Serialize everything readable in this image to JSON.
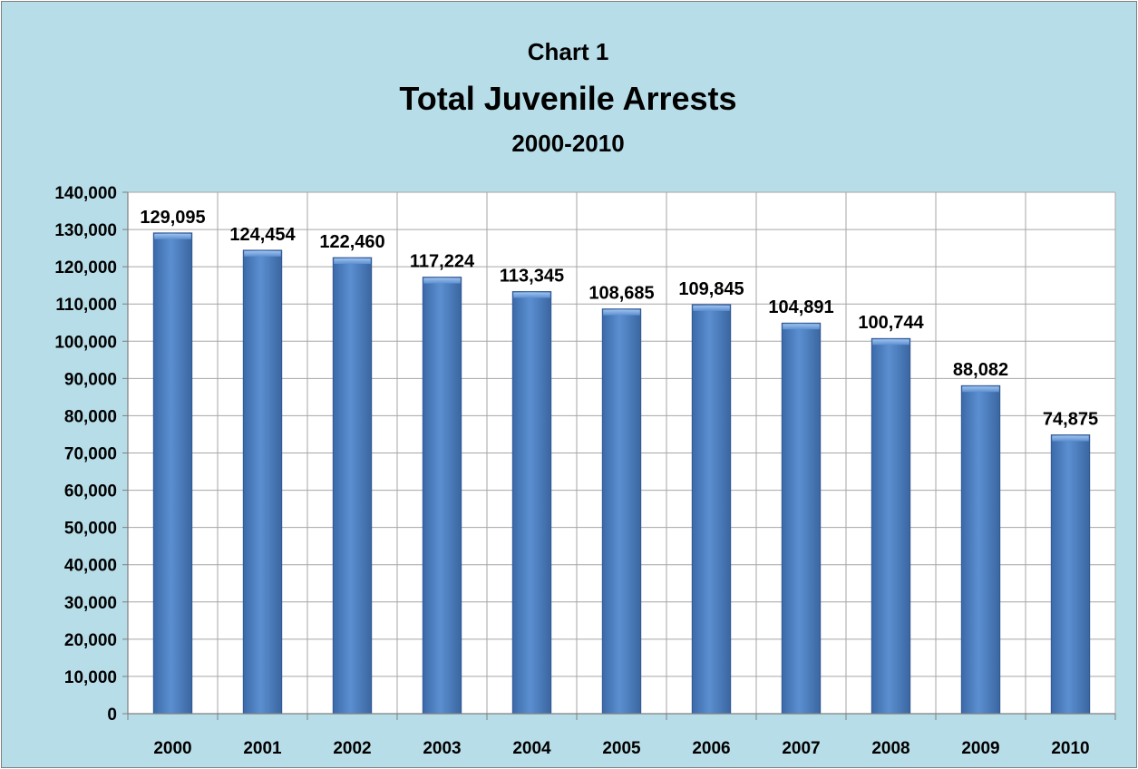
{
  "chart_data": {
    "type": "bar",
    "title": "Chart 1",
    "subtitle": "Total Juvenile Arrests",
    "subtitle2": "2000-2010",
    "categories": [
      "2000",
      "2001",
      "2002",
      "2003",
      "2004",
      "2005",
      "2006",
      "2007",
      "2008",
      "2009",
      "2010"
    ],
    "values": [
      129095,
      124454,
      122460,
      117224,
      113345,
      108685,
      109845,
      104891,
      100744,
      88082,
      74875
    ],
    "data_labels": [
      "129,095",
      "124,454",
      "122,460",
      "117,224",
      "113,345",
      "108,685",
      "109,845",
      "104,891",
      "100,744",
      "88,082",
      "74,875"
    ],
    "y_ticks": [
      "0",
      "10,000",
      "20,000",
      "30,000",
      "40,000",
      "50,000",
      "60,000",
      "70,000",
      "80,000",
      "90,000",
      "100,000",
      "110,000",
      "120,000",
      "130,000",
      "140,000"
    ],
    "ylim": [
      0,
      140000
    ],
    "xlabel": "",
    "ylabel": "",
    "grid": true,
    "legend": "none",
    "colors": {
      "background": "#b7dde8",
      "plot": "#ffffff",
      "bar": "#4f81bd",
      "grid": "#a6a6a6"
    }
  }
}
